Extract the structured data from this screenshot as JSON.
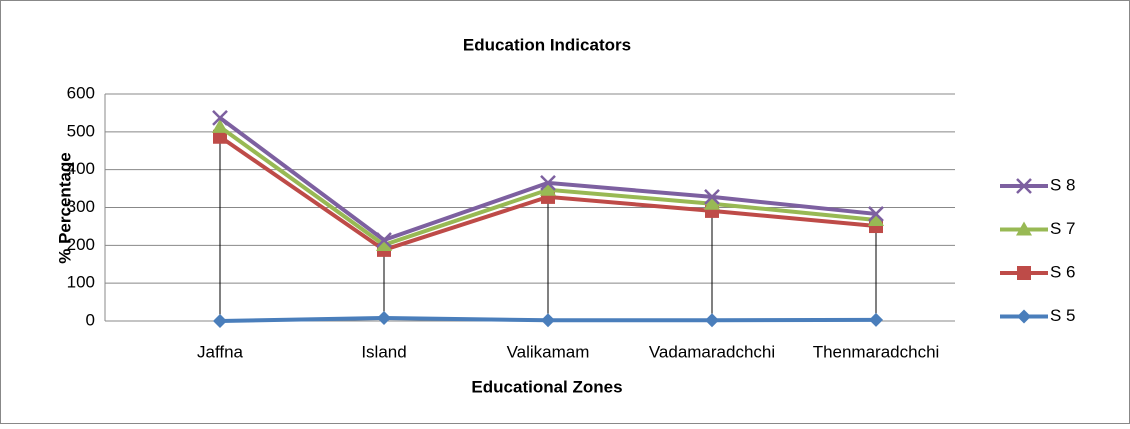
{
  "chart_data": {
    "type": "line",
    "title": "Education Indicators",
    "x_label": "Educational Zones",
    "y_label": "% Percentage",
    "categories": [
      "Jaffna",
      "Island",
      "Valikamam",
      "Vadamaradchchi",
      "Thenmaradchchi"
    ],
    "series": [
      {
        "name": "S 5",
        "color": "#4a7ebb",
        "marker": "diamond",
        "values": [
          0,
          8,
          2,
          2,
          3
        ]
      },
      {
        "name": "S 6",
        "color": "#be4b48",
        "marker": "square",
        "values": [
          487,
          188,
          328,
          291,
          251
        ]
      },
      {
        "name": "S 7",
        "color": "#98b954",
        "marker": "triangle",
        "values": [
          513,
          201,
          347,
          310,
          267
        ]
      },
      {
        "name": "S 8",
        "color": "#7d60a0",
        "marker": "x",
        "values": [
          537,
          214,
          365,
          328,
          283
        ]
      }
    ],
    "ylim": [
      0,
      600
    ],
    "yticks": [
      0,
      100,
      200,
      300,
      400,
      500,
      600
    ],
    "grid": true,
    "drop_lines": true,
    "legend": "right"
  }
}
